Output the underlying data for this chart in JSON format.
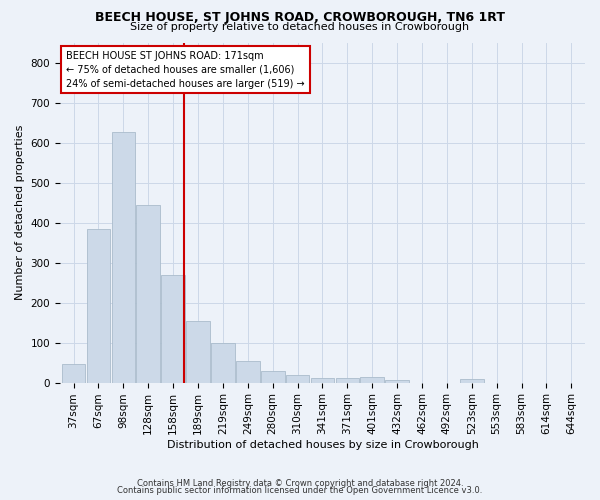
{
  "title": "BEECH HOUSE, ST JOHNS ROAD, CROWBOROUGH, TN6 1RT",
  "subtitle": "Size of property relative to detached houses in Crowborough",
  "xlabel": "Distribution of detached houses by size in Crowborough",
  "ylabel": "Number of detached properties",
  "footer1": "Contains HM Land Registry data © Crown copyright and database right 2024.",
  "footer2": "Contains public sector information licensed under the Open Government Licence v3.0.",
  "bar_labels": [
    "37sqm",
    "67sqm",
    "98sqm",
    "128sqm",
    "158sqm",
    "189sqm",
    "219sqm",
    "249sqm",
    "280sqm",
    "310sqm",
    "341sqm",
    "371sqm",
    "401sqm",
    "432sqm",
    "462sqm",
    "492sqm",
    "523sqm",
    "553sqm",
    "583sqm",
    "614sqm",
    "644sqm"
  ],
  "bar_values": [
    47,
    383,
    627,
    445,
    270,
    155,
    98,
    53,
    29,
    18,
    11,
    11,
    14,
    7,
    0,
    0,
    8,
    0,
    0,
    0,
    0
  ],
  "bar_color": "#ccd9e8",
  "bar_edge_color": "#aabccc",
  "annotation_text_line1": "BEECH HOUSE ST JOHNS ROAD: 171sqm",
  "annotation_text_line2": "← 75% of detached houses are smaller (1,606)",
  "annotation_text_line3": "24% of semi-detached houses are larger (519) →",
  "annotation_box_color": "#ffffff",
  "annotation_box_edge": "#cc0000",
  "vline_color": "#cc0000",
  "vline_x": 4.42,
  "grid_color": "#cdd8e8",
  "background_color": "#edf2f9",
  "ylim": [
    0,
    850
  ],
  "yticks": [
    0,
    100,
    200,
    300,
    400,
    500,
    600,
    700,
    800
  ],
  "title_fontsize": 9,
  "subtitle_fontsize": 8,
  "ylabel_fontsize": 8,
  "xlabel_fontsize": 8,
  "tick_fontsize": 7.5
}
